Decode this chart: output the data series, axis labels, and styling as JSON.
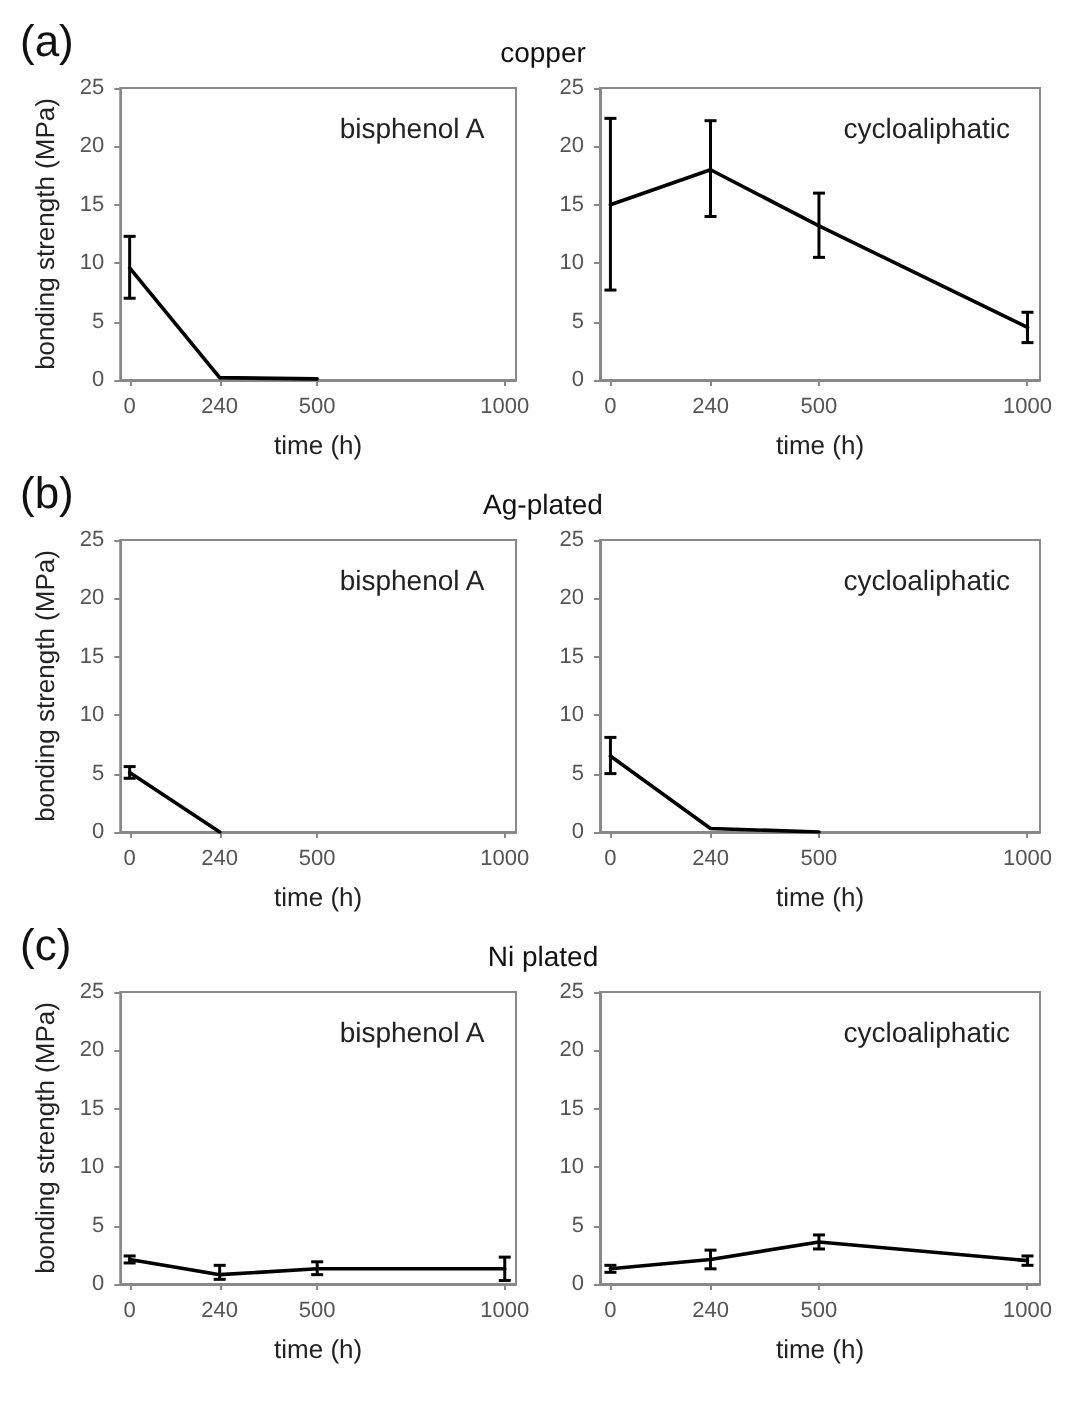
{
  "chart_data": [
    {
      "type": "line",
      "title": "copper",
      "annotations": [
        "(a)"
      ],
      "subtitle": "bisphenol A",
      "xlabel": "time (h)",
      "ylabel": "bonding strength (MPa)",
      "x": [
        0,
        240,
        500
      ],
      "series": [
        {
          "color": "#000000",
          "values": [
            9.6,
            0.2,
            0.1
          ],
          "errors": [
            [
              7,
              12.3
            ],
            null,
            null
          ]
        }
      ],
      "xlim": [
        -25,
        1030
      ],
      "xticks": [
        0,
        240,
        500,
        1000
      ],
      "ylim": [
        0,
        25
      ],
      "yticks": [
        0,
        5,
        10,
        15,
        20,
        25
      ],
      "grid": false,
      "marker": "none",
      "line_style": "solid"
    },
    {
      "type": "line",
      "subtitle": "cycloaliphatic",
      "xlabel": "time (h)",
      "x": [
        0,
        240,
        500,
        1000
      ],
      "series": [
        {
          "color": "#000000",
          "values": [
            15,
            18,
            13.2,
            4.5
          ],
          "errors": [
            [
              7.7,
              22.4
            ],
            [
              14,
              22.2
            ],
            [
              10.5,
              16
            ],
            [
              3.2,
              5.8
            ]
          ]
        }
      ],
      "xlim": [
        -25,
        1030
      ],
      "xticks": [
        0,
        240,
        500,
        1000
      ],
      "ylim": [
        0,
        25
      ],
      "yticks": [
        0,
        5,
        10,
        15,
        20,
        25
      ],
      "grid": false,
      "marker": "none",
      "line_style": "solid"
    },
    {
      "type": "line",
      "title": "Ag-plated",
      "annotations": [
        "(b)"
      ],
      "subtitle": "bisphenol A",
      "xlabel": "time (h)",
      "ylabel": "bonding strength (MPa)",
      "x": [
        0,
        240
      ],
      "series": [
        {
          "color": "#000000",
          "values": [
            5.1,
            0
          ],
          "errors": [
            [
              4.6,
              5.6
            ],
            null
          ]
        }
      ],
      "xlim": [
        -25,
        1030
      ],
      "xticks": [
        0,
        240,
        500,
        1000
      ],
      "ylim": [
        0,
        25
      ],
      "yticks": [
        0,
        5,
        10,
        15,
        20,
        25
      ],
      "grid": false,
      "marker": "none",
      "line_style": "solid"
    },
    {
      "type": "line",
      "subtitle": "cycloaliphatic",
      "xlabel": "time (h)",
      "x": [
        0,
        240,
        500
      ],
      "series": [
        {
          "color": "#000000",
          "values": [
            6.5,
            0.3,
            0
          ],
          "errors": [
            [
              5,
              8.1
            ],
            null,
            null
          ]
        }
      ],
      "xlim": [
        -25,
        1030
      ],
      "xticks": [
        0,
        240,
        500,
        1000
      ],
      "ylim": [
        0,
        25
      ],
      "yticks": [
        0,
        5,
        10,
        15,
        20,
        25
      ],
      "grid": false,
      "marker": "none",
      "line_style": "solid"
    },
    {
      "type": "line",
      "title": "Ni plated",
      "annotations": [
        "(c)"
      ],
      "subtitle": "bisphenol A",
      "xlabel": "time (h)",
      "ylabel": "bonding strength (MPa)",
      "x": [
        0,
        240,
        500,
        1000
      ],
      "series": [
        {
          "color": "#000000",
          "values": [
            2.1,
            0.8,
            1.3,
            1.3
          ],
          "errors": [
            [
              1.8,
              2.4
            ],
            [
              0.4,
              1.6
            ],
            [
              0.8,
              1.9
            ],
            [
              0.3,
              2.3
            ]
          ]
        }
      ],
      "xlim": [
        -25,
        1030
      ],
      "xticks": [
        0,
        240,
        500,
        1000
      ],
      "ylim": [
        0,
        25
      ],
      "yticks": [
        0,
        5,
        10,
        15,
        20,
        25
      ],
      "grid": false,
      "marker": "none",
      "line_style": "solid"
    },
    {
      "type": "line",
      "subtitle": "cycloaliphatic",
      "xlabel": "time (h)",
      "x": [
        0,
        240,
        500,
        1000
      ],
      "series": [
        {
          "color": "#000000",
          "values": [
            1.3,
            2.1,
            3.6,
            2.0
          ],
          "errors": [
            [
              1,
              1.6
            ],
            [
              1.3,
              2.9
            ],
            [
              3,
              4.2
            ],
            [
              1.6,
              2.4
            ]
          ]
        }
      ],
      "xlim": [
        -25,
        1030
      ],
      "xticks": [
        0,
        240,
        500,
        1000
      ],
      "ylim": [
        0,
        25
      ],
      "yticks": [
        0,
        5,
        10,
        15,
        20,
        25
      ],
      "grid": false,
      "marker": "none",
      "line_style": "solid"
    }
  ]
}
